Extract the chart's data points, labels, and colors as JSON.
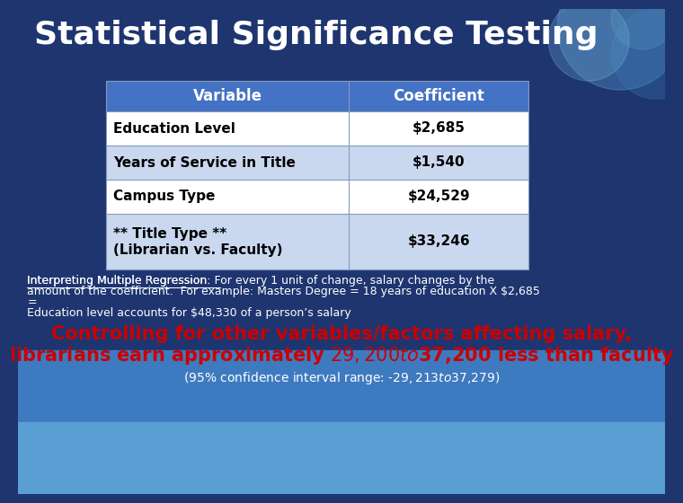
{
  "title": "Statistical Significance Testing",
  "title_color": "#FFFFFF",
  "title_fontsize": 26,
  "bg_color_top": "#1e3570",
  "bg_color_bottom": "#4a8cc4",
  "table_headers": [
    "Variable",
    "Coefficient"
  ],
  "table_rows": [
    [
      "Education Level",
      "$2,685"
    ],
    [
      "Years of Service in Title",
      "$1,540"
    ],
    [
      "Campus Type",
      "$24,529"
    ],
    [
      "** Title Type **\n(Librarian vs. Faculty)",
      "$33,246"
    ]
  ],
  "header_bg": "#4472c4",
  "header_text_color": "#FFFFFF",
  "row_bg_odd": "#FFFFFF",
  "row_bg_even": "#c9d8ef",
  "row_text_color": "#000000",
  "interpret_underline": "Interpreting Multiple Regression:",
  "interpret_text_line1": " For every 1 unit of change, salary changes by the",
  "interpret_text_line2": "amount of the coefficient.  For example: Masters Degree = 18 years of education X $2,685",
  "interpret_text_line3": "=",
  "interpret_text_line4": "Education level accounts for $48,330 of a person’s salary",
  "interpret_text_color": "#FFFFFF",
  "interpret_fontsize": 9,
  "red_text_line1": "Controlling for other variables/factors affecting salary,",
  "red_text_line2": "librarians earn approximately $29,200 to $37,200 less than faculty",
  "red_text_color": "#cc0000",
  "red_fontsize": 15,
  "confidence_text": "(95% confidence interval range: -$29,213 to $37,279)",
  "confidence_color": "#FFFFFF",
  "confidence_fontsize": 10
}
